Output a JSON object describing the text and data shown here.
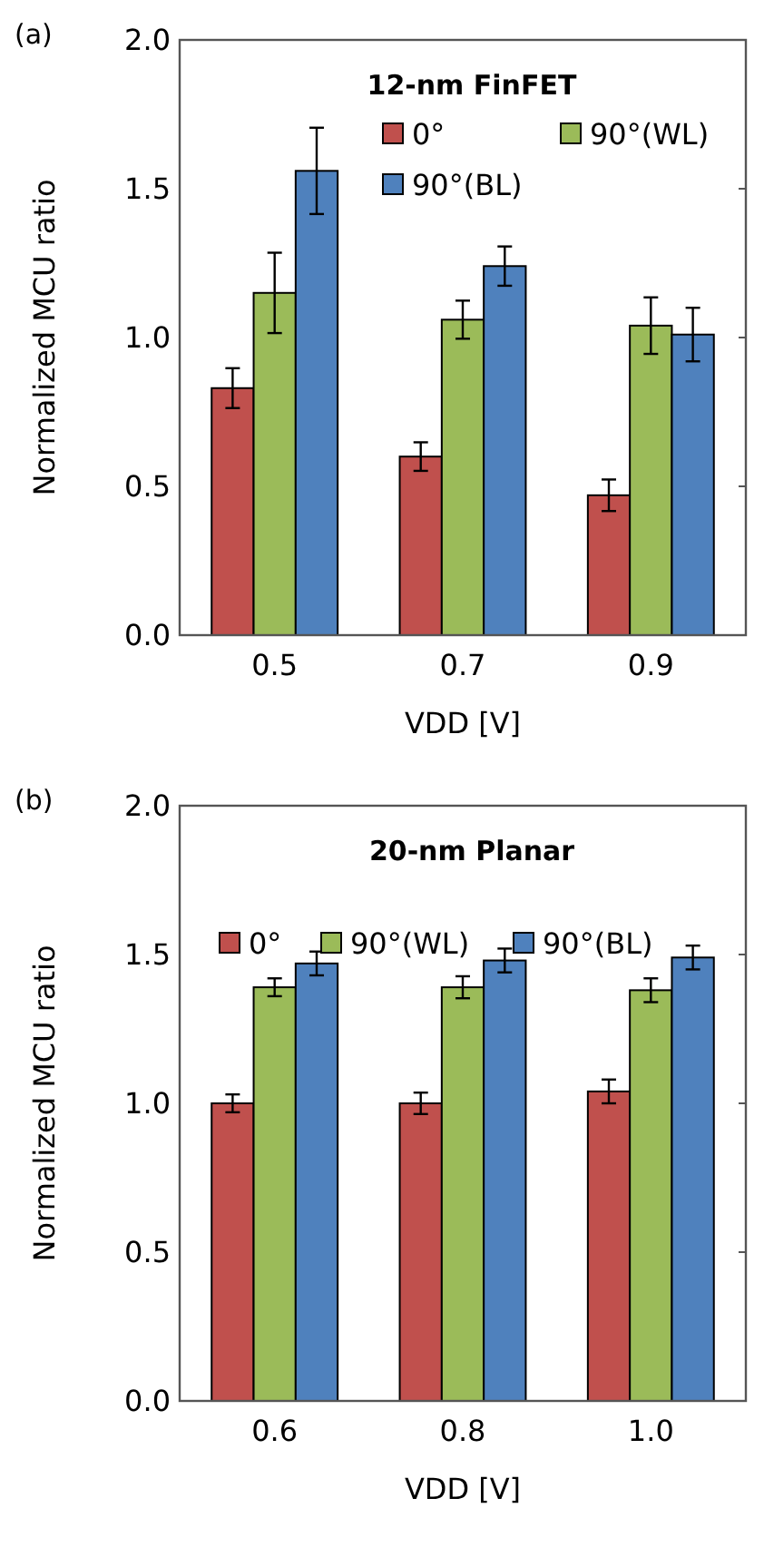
{
  "chart_data": [
    {
      "type": "bar",
      "title": "12-nm FinFET",
      "xlabel": "VDD [V]",
      "ylabel": "Normalized MCU ratio",
      "annotations": [
        "(a)"
      ],
      "categories": [
        "0.5",
        "0.7",
        "0.9"
      ],
      "series": [
        {
          "name": "0°",
          "color": "#c0504d",
          "values": [
            0.83,
            0.6,
            0.47
          ],
          "errors": [
            0.067,
            0.048,
            0.053
          ]
        },
        {
          "name": "90°(WL)",
          "color": "#9bbb59",
          "values": [
            1.15,
            1.06,
            1.04
          ],
          "errors": [
            0.135,
            0.064,
            0.095
          ]
        },
        {
          "name": "90°(BL)",
          "color": "#4f81bd",
          "values": [
            1.56,
            1.24,
            1.01
          ],
          "errors": [
            0.145,
            0.066,
            0.09
          ]
        }
      ],
      "ylim": [
        0,
        2
      ],
      "yticks": [
        {
          "value": 0,
          "label": "0.0"
        },
        {
          "value": 0.5,
          "label": "0.5"
        },
        {
          "value": 1,
          "label": "1.0"
        },
        {
          "value": 1.5,
          "label": "1.5"
        },
        {
          "value": 2,
          "label": "2.0"
        }
      ],
      "grid": false,
      "legend": "top right"
    },
    {
      "type": "bar",
      "title": "20-nm Planar",
      "xlabel": "VDD [V]",
      "ylabel": "Normalized MCU ratio",
      "annotations": [
        "(b)"
      ],
      "categories": [
        "0.6",
        "0.8",
        "1.0"
      ],
      "series": [
        {
          "name": "0°",
          "color": "#c0504d",
          "values": [
            1.0,
            1.0,
            1.04
          ],
          "errors": [
            0.03,
            0.036,
            0.04
          ]
        },
        {
          "name": "90°(WL)",
          "color": "#9bbb59",
          "values": [
            1.39,
            1.39,
            1.38
          ],
          "errors": [
            0.03,
            0.037,
            0.04
          ]
        },
        {
          "name": "90°(BL)",
          "color": "#4f81bd",
          "values": [
            1.47,
            1.48,
            1.49
          ],
          "errors": [
            0.04,
            0.04,
            0.04
          ]
        }
      ],
      "ylim": [
        0,
        2
      ],
      "yticks": [
        {
          "value": 0,
          "label": "0.0"
        },
        {
          "value": 0.5,
          "label": "0.5"
        },
        {
          "value": 1,
          "label": "1.0"
        },
        {
          "value": 1.5,
          "label": "1.5"
        },
        {
          "value": 2,
          "label": "2.0"
        }
      ],
      "grid": false,
      "legend": "top"
    }
  ]
}
